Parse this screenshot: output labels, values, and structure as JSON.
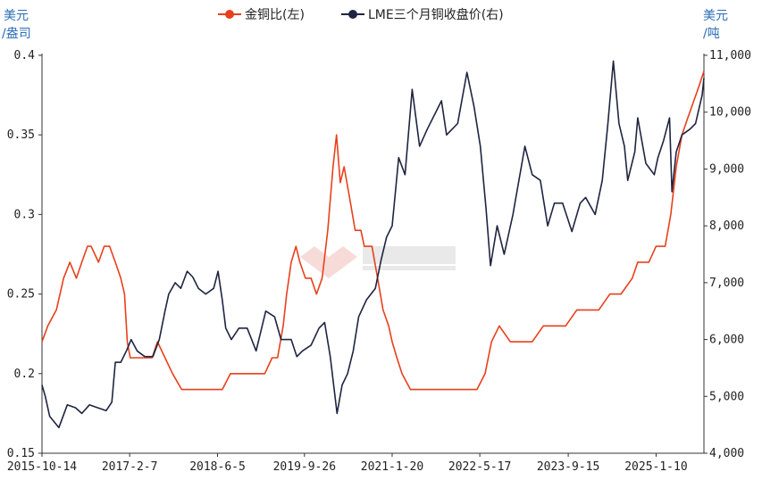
{
  "chart_data": {
    "type": "line",
    "legend": {
      "placement": "top-center",
      "items": [
        "金铜比(左)",
        "LME三个月铜收盘价(右)"
      ]
    },
    "left_unit": [
      "美元",
      "/盎司"
    ],
    "right_unit": [
      "美元",
      "/吨"
    ],
    "x_ticks": [
      "2015-10-14",
      "2017-2-7",
      "2018-6-5",
      "2019-9-26",
      "2021-1-20",
      "2022-5-17",
      "2023-9-15",
      "2025-1-10"
    ],
    "x_range": [
      "2015-10-14",
      "2025-09-30"
    ],
    "y_left": {
      "ticks": [
        "0.15",
        "0.2",
        "0.25",
        "0.3",
        "0.35",
        "0.4"
      ],
      "min": 0.15,
      "max": 0.4
    },
    "y_right": {
      "ticks": [
        "4,000",
        "5,000",
        "6,000",
        "7,000",
        "8,000",
        "9,000",
        "10,000",
        "11,000"
      ],
      "min": 4000,
      "max": 11000
    },
    "series": [
      {
        "name": "金铜比(左)",
        "axis": "left",
        "color": "#e8401c",
        "points": [
          [
            "2015-10-14",
            0.22
          ],
          [
            "2015-11-15",
            0.23
          ],
          [
            "2016-01-01",
            0.24
          ],
          [
            "2016-02-10",
            0.26
          ],
          [
            "2016-03-15",
            0.27
          ],
          [
            "2016-04-20",
            0.26
          ],
          [
            "2016-05-20",
            0.27
          ],
          [
            "2016-06-20",
            0.28
          ],
          [
            "2016-07-10",
            0.28
          ],
          [
            "2016-08-20",
            0.27
          ],
          [
            "2016-09-20",
            0.28
          ],
          [
            "2016-10-20",
            0.28
          ],
          [
            "2016-11-20",
            0.27
          ],
          [
            "2016-12-20",
            0.26
          ],
          [
            "2017-01-10",
            0.25
          ],
          [
            "2017-01-25",
            0.22
          ],
          [
            "2017-02-10",
            0.21
          ],
          [
            "2017-03-20",
            0.21
          ],
          [
            "2017-05-01",
            0.21
          ],
          [
            "2017-06-10",
            0.21
          ],
          [
            "2017-07-10",
            0.22
          ],
          [
            "2017-08-20",
            0.21
          ],
          [
            "2017-10-01",
            0.2
          ],
          [
            "2017-11-20",
            0.19
          ],
          [
            "2018-01-10",
            0.19
          ],
          [
            "2018-02-20",
            0.19
          ],
          [
            "2018-04-01",
            0.19
          ],
          [
            "2018-05-20",
            0.19
          ],
          [
            "2018-07-01",
            0.19
          ],
          [
            "2018-08-15",
            0.2
          ],
          [
            "2018-10-01",
            0.2
          ],
          [
            "2018-11-20",
            0.2
          ],
          [
            "2019-01-10",
            0.2
          ],
          [
            "2019-02-20",
            0.2
          ],
          [
            "2019-04-01",
            0.21
          ],
          [
            "2019-05-01",
            0.21
          ],
          [
            "2019-06-01",
            0.23
          ],
          [
            "2019-06-20",
            0.25
          ],
          [
            "2019-07-15",
            0.27
          ],
          [
            "2019-08-10",
            0.28
          ],
          [
            "2019-09-01",
            0.27
          ],
          [
            "2019-10-01",
            0.26
          ],
          [
            "2019-11-01",
            0.26
          ],
          [
            "2019-12-01",
            0.25
          ],
          [
            "2020-01-01",
            0.26
          ],
          [
            "2020-02-01",
            0.29
          ],
          [
            "2020-03-01",
            0.33
          ],
          [
            "2020-03-20",
            0.35
          ],
          [
            "2020-04-10",
            0.32
          ],
          [
            "2020-05-01",
            0.33
          ],
          [
            "2020-06-01",
            0.31
          ],
          [
            "2020-07-01",
            0.29
          ],
          [
            "2020-08-01",
            0.29
          ],
          [
            "2020-08-20",
            0.28
          ],
          [
            "2020-10-01",
            0.28
          ],
          [
            "2020-11-01",
            0.26
          ],
          [
            "2020-12-01",
            0.24
          ],
          [
            "2021-01-01",
            0.23
          ],
          [
            "2021-01-20",
            0.22
          ],
          [
            "2021-02-15",
            0.21
          ],
          [
            "2021-03-15",
            0.2
          ],
          [
            "2021-05-01",
            0.19
          ],
          [
            "2021-07-01",
            0.19
          ],
          [
            "2021-09-01",
            0.19
          ],
          [
            "2021-11-01",
            0.19
          ],
          [
            "2022-01-01",
            0.19
          ],
          [
            "2022-03-01",
            0.19
          ],
          [
            "2022-05-01",
            0.19
          ],
          [
            "2022-06-15",
            0.2
          ],
          [
            "2022-07-20",
            0.22
          ],
          [
            "2022-09-01",
            0.23
          ],
          [
            "2022-11-01",
            0.22
          ],
          [
            "2023-01-01",
            0.22
          ],
          [
            "2023-03-01",
            0.22
          ],
          [
            "2023-05-01",
            0.23
          ],
          [
            "2023-07-01",
            0.23
          ],
          [
            "2023-09-01",
            0.23
          ],
          [
            "2023-11-01",
            0.24
          ],
          [
            "2024-01-01",
            0.24
          ],
          [
            "2024-03-01",
            0.24
          ],
          [
            "2024-05-01",
            0.25
          ],
          [
            "2024-07-01",
            0.25
          ],
          [
            "2024-09-01",
            0.26
          ],
          [
            "2024-10-01",
            0.27
          ],
          [
            "2024-12-01",
            0.27
          ],
          [
            "2025-01-10",
            0.28
          ],
          [
            "2025-03-01",
            0.28
          ],
          [
            "2025-04-01",
            0.3
          ],
          [
            "2025-05-01",
            0.33
          ],
          [
            "2025-06-01",
            0.35
          ],
          [
            "2025-07-01",
            0.36
          ],
          [
            "2025-08-01",
            0.37
          ],
          [
            "2025-09-01",
            0.38
          ],
          [
            "2025-09-30",
            0.39
          ]
        ]
      },
      {
        "name": "LME三个月铜收盘价(右)",
        "axis": "right",
        "color": "#1f2440",
        "points": [
          [
            "2015-10-14",
            5200
          ],
          [
            "2015-11-01",
            5000
          ],
          [
            "2015-11-25",
            4650
          ],
          [
            "2016-01-15",
            4450
          ],
          [
            "2016-03-01",
            4850
          ],
          [
            "2016-04-15",
            4800
          ],
          [
            "2016-05-20",
            4700
          ],
          [
            "2016-07-01",
            4850
          ],
          [
            "2016-08-15",
            4800
          ],
          [
            "2016-10-01",
            4750
          ],
          [
            "2016-11-01",
            4900
          ],
          [
            "2016-11-20",
            5600
          ],
          [
            "2016-12-20",
            5600
          ],
          [
            "2017-01-20",
            5800
          ],
          [
            "2017-02-15",
            6000
          ],
          [
            "2017-03-20",
            5800
          ],
          [
            "2017-05-01",
            5700
          ],
          [
            "2017-06-15",
            5700
          ],
          [
            "2017-07-20",
            6000
          ],
          [
            "2017-08-20",
            6500
          ],
          [
            "2017-09-10",
            6800
          ],
          [
            "2017-10-15",
            7000
          ],
          [
            "2017-11-15",
            6900
          ],
          [
            "2017-12-20",
            7200
          ],
          [
            "2018-01-20",
            7100
          ],
          [
            "2018-02-20",
            6900
          ],
          [
            "2018-04-01",
            6800
          ],
          [
            "2018-05-15",
            6900
          ],
          [
            "2018-06-08",
            7200
          ],
          [
            "2018-07-01",
            6700
          ],
          [
            "2018-07-20",
            6200
          ],
          [
            "2018-08-20",
            6000
          ],
          [
            "2018-10-01",
            6200
          ],
          [
            "2018-11-15",
            6200
          ],
          [
            "2019-01-03",
            5800
          ],
          [
            "2019-02-25",
            6500
          ],
          [
            "2019-04-15",
            6400
          ],
          [
            "2019-05-20",
            6000
          ],
          [
            "2019-07-15",
            6000
          ],
          [
            "2019-08-15",
            5700
          ],
          [
            "2019-09-15",
            5800
          ],
          [
            "2019-11-01",
            5900
          ],
          [
            "2019-12-15",
            6200
          ],
          [
            "2020-01-15",
            6300
          ],
          [
            "2020-02-15",
            5700
          ],
          [
            "2020-03-23",
            4700
          ],
          [
            "2020-04-20",
            5200
          ],
          [
            "2020-05-20",
            5400
          ],
          [
            "2020-06-20",
            5800
          ],
          [
            "2020-07-20",
            6400
          ],
          [
            "2020-09-01",
            6700
          ],
          [
            "2020-10-20",
            6900
          ],
          [
            "2020-11-20",
            7400
          ],
          [
            "2020-12-20",
            7800
          ],
          [
            "2021-01-20",
            8000
          ],
          [
            "2021-02-25",
            9200
          ],
          [
            "2021-04-01",
            8900
          ],
          [
            "2021-05-10",
            10400
          ],
          [
            "2021-06-20",
            9400
          ],
          [
            "2021-08-01",
            9700
          ],
          [
            "2021-10-18",
            10200
          ],
          [
            "2021-11-15",
            9600
          ],
          [
            "2022-01-15",
            9800
          ],
          [
            "2022-03-07",
            10700
          ],
          [
            "2022-04-15",
            10100
          ],
          [
            "2022-05-20",
            9400
          ],
          [
            "2022-06-20",
            8300
          ],
          [
            "2022-07-15",
            7300
          ],
          [
            "2022-08-20",
            8000
          ],
          [
            "2022-09-28",
            7500
          ],
          [
            "2022-11-15",
            8200
          ],
          [
            "2023-01-20",
            9400
          ],
          [
            "2023-03-01",
            8900
          ],
          [
            "2023-04-15",
            8800
          ],
          [
            "2023-05-25",
            8000
          ],
          [
            "2023-07-01",
            8400
          ],
          [
            "2023-08-15",
            8400
          ],
          [
            "2023-10-05",
            7900
          ],
          [
            "2023-11-20",
            8400
          ],
          [
            "2023-12-20",
            8500
          ],
          [
            "2024-02-10",
            8200
          ],
          [
            "2024-03-20",
            8800
          ],
          [
            "2024-04-20",
            9800
          ],
          [
            "2024-05-20",
            10900
          ],
          [
            "2024-06-20",
            9800
          ],
          [
            "2024-07-20",
            9400
          ],
          [
            "2024-08-07",
            8800
          ],
          [
            "2024-09-15",
            9300
          ],
          [
            "2024-10-01",
            9900
          ],
          [
            "2024-11-15",
            9100
          ],
          [
            "2024-12-31",
            8900
          ],
          [
            "2025-01-20",
            9200
          ],
          [
            "2025-02-20",
            9500
          ],
          [
            "2025-03-25",
            9900
          ],
          [
            "2025-04-07",
            8600
          ],
          [
            "2025-05-01",
            9300
          ],
          [
            "2025-06-01",
            9600
          ],
          [
            "2025-07-15",
            9700
          ],
          [
            "2025-08-15",
            9800
          ],
          [
            "2025-09-20",
            10300
          ],
          [
            "2025-09-30",
            10600
          ]
        ]
      }
    ]
  }
}
